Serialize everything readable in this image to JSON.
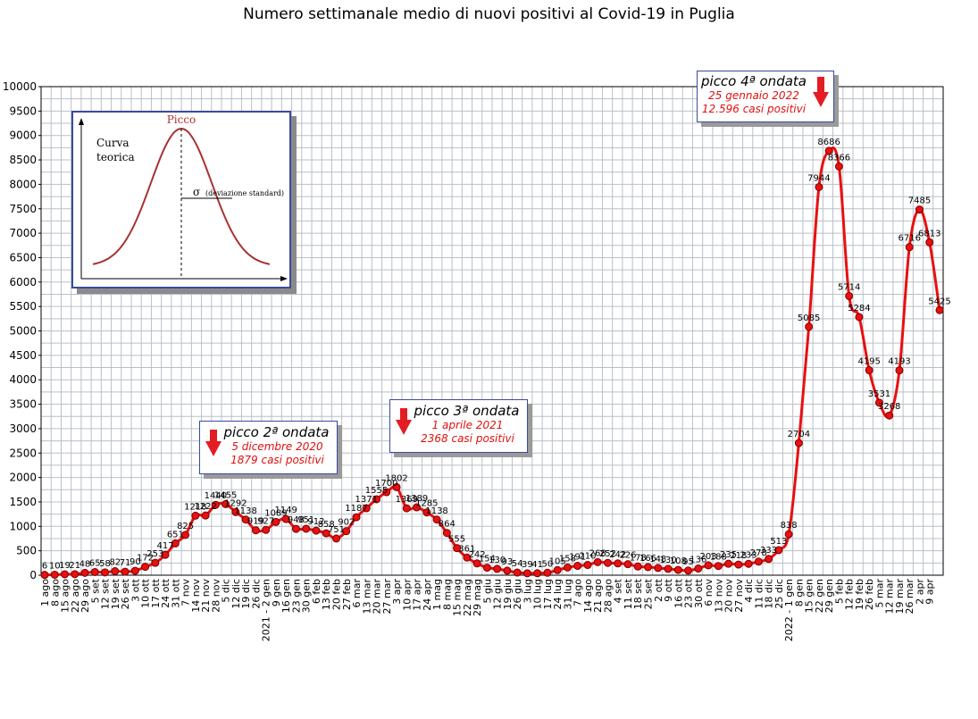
{
  "chart_data": {
    "type": "line",
    "title": "Numero settimanale medio di nuovi positivi al Covid-19 in Puglia",
    "ylim": [
      0,
      10000
    ],
    "y_ticks": [
      0,
      500,
      1000,
      1500,
      2000,
      2500,
      3000,
      3500,
      4000,
      4500,
      5000,
      5500,
      6000,
      6500,
      7000,
      7500,
      8000,
      8500,
      9000,
      9500,
      10000
    ],
    "grid": true,
    "line_color": "#e81010",
    "marker_color": "#e81010",
    "x_labels": [
      "1 ago",
      "8 ago",
      "15 ago",
      "22 ago",
      "29 ago",
      "5 set",
      "12 set",
      "19 set",
      "26 set",
      "3 ott",
      "10 ott",
      "17 ott",
      "24 ott",
      "31 ott",
      "7 nov",
      "14 nov",
      "21 nov",
      "28 nov",
      "5 dic",
      "12 dic",
      "19 dic",
      "26 dic",
      "2021 - 2 gen",
      "9 gen",
      "16 gen",
      "23 gen",
      "30 gen",
      "6 feb",
      "13 feb",
      "20 feb",
      "27 feb",
      "6 mar",
      "13 mar",
      "20 mar",
      "27 mar",
      "3 apr",
      "10 apr",
      "17 apr",
      "24 apr",
      "1 mag",
      "8 mag",
      "15 mag",
      "22 mag",
      "29 mag",
      "5 giu",
      "12 giu",
      "19 giu",
      "26 giu",
      "3 lug",
      "10 lug",
      "17 lug",
      "24 lug",
      "31 lug",
      "7 ago",
      "14 ago",
      "21 ago",
      "28 ago",
      "4 set",
      "11 set",
      "18 set",
      "25 set",
      "2 ott",
      "9 ott",
      "16 ott",
      "23 ott",
      "30 ott",
      "6 nov",
      "13 nov",
      "20 nov",
      "27 nov",
      "4 dic",
      "11 dic",
      "18 dic",
      "25 dic",
      "2022 - 1 gen",
      "8 gen",
      "15 gen",
      "22 gen",
      "29 gen",
      "5 feb",
      "12 feb",
      "19 feb",
      "26 feb",
      "5 mar",
      "12 mar",
      "19 mar",
      "26 mar",
      "2 apr",
      "9 apr"
    ],
    "values": [
      6,
      10,
      19,
      21,
      48,
      65,
      58,
      82,
      71,
      90,
      172,
      253,
      417,
      651,
      825,
      1218,
      1222,
      1440,
      1455,
      1292,
      1138,
      919,
      927,
      1089,
      1149,
      948,
      951,
      912,
      858,
      751,
      902,
      1187,
      1371,
      1555,
      1700,
      1802,
      1369,
      1389,
      1285,
      1138,
      864,
      555,
      361,
      242,
      154,
      130,
      93,
      54,
      39,
      41,
      50,
      105,
      158,
      191,
      210,
      268,
      252,
      242,
      226,
      178,
      166,
      148,
      130,
      108,
      95,
      136,
      203,
      188,
      235,
      218,
      233,
      278,
      333,
      513,
      838,
      2704,
      5085,
      7944,
      8686,
      8366,
      5714,
      5284,
      4195,
      3531,
      3268,
      4193,
      6716,
      7485,
      6813,
      5425
    ],
    "data_labels": [
      "6",
      "10",
      "19",
      "21",
      "48",
      "65",
      "58",
      "82",
      "71",
      "90",
      "172",
      "253",
      "417",
      "651",
      "825",
      "1218",
      "1222",
      "1440",
      "1455",
      "1292",
      "1138",
      "919",
      "927",
      "1089",
      "1149",
      "948",
      "951",
      "912",
      "858",
      "751",
      "902",
      "1187",
      "1371",
      "1555",
      "1700",
      "1802",
      "1369",
      "1389",
      "1285",
      "1138",
      "864",
      "555",
      "361",
      "242",
      "154",
      "130",
      "93",
      "54",
      "39",
      "41",
      "50",
      "105",
      "158",
      "191",
      "210",
      "268",
      "252",
      "242",
      "226",
      "178",
      "166",
      "148",
      "130",
      "108",
      "95",
      "136",
      "203",
      "188",
      "235",
      "218",
      "233",
      "278",
      "333",
      "513",
      "838",
      "2704",
      "5085",
      "7944",
      "8686",
      "8366",
      "5714",
      "5284",
      "4195",
      "3531",
      "3268",
      "4193",
      "6716",
      "7485",
      "6813",
      "5425"
    ],
    "annotations": [
      {
        "title": "picco 2ª ondata",
        "date": "5 dicembre 2020",
        "cases": "1879 casi positivi"
      },
      {
        "title": "picco 3ª ondata",
        "date": "1 aprile 2021",
        "cases": "2368 casi positivi"
      },
      {
        "title": "picco 4ª ondata",
        "date": "25 gennaio 2022",
        "cases": "12.596 casi positivi"
      }
    ],
    "inset": {
      "peak_label": "Picco",
      "curve_label_1": "Curva",
      "curve_label_2": "teorica",
      "sigma_label": "σ",
      "sigma_desc": "(deviazione standard)"
    }
  }
}
